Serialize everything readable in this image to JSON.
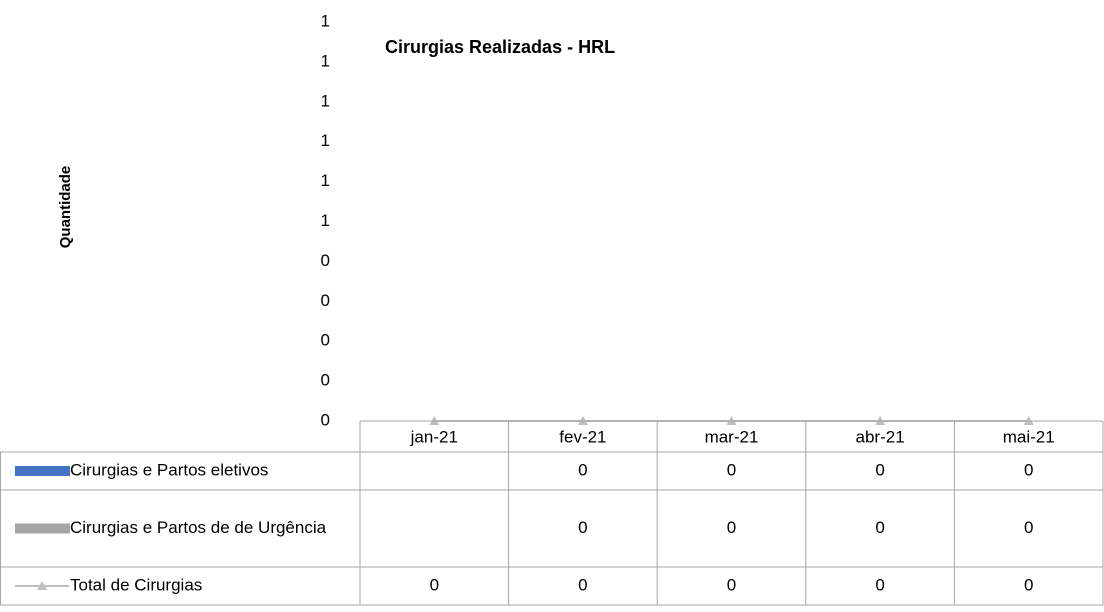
{
  "chart_data": {
    "type": "bar",
    "title": "Cirurgias Realizadas - HRL",
    "y_label": "Quantidade",
    "categories": [
      "jan-21",
      "fev-21",
      "mar-21",
      "abr-21",
      "mai-21"
    ],
    "series": [
      {
        "name": "Cirurgias e Partos eletivos",
        "color": "#4472c4",
        "type": "bar",
        "values": [
          null,
          0,
          0,
          0,
          0
        ]
      },
      {
        "name": "Cirurgias e Partos de de Urgência",
        "color": "#a5a5a5",
        "type": "bar",
        "values": [
          null,
          0,
          0,
          0,
          0
        ]
      },
      {
        "name": "Total de Cirurgias",
        "color": "#bfbfbf",
        "type": "line",
        "values": [
          0,
          0,
          0,
          0,
          0
        ]
      }
    ],
    "ylim": [
      0,
      1
    ],
    "yticks": [
      0,
      {
        "value": 0.1,
        "label": "0"
      },
      {
        "value": 0.2,
        "label": "0"
      },
      {
        "value": 0.3,
        "label": "0"
      },
      {
        "value": 0.4,
        "label": "0"
      },
      {
        "value": 0.5,
        "label": "1"
      },
      {
        "value": 0.6,
        "label": "1"
      },
      {
        "value": 0.7,
        "label": "1"
      },
      {
        "value": 0.8,
        "label": "1"
      },
      {
        "value": 0.9,
        "label": "1"
      },
      1
    ],
    "grid": false,
    "data_table": true
  }
}
